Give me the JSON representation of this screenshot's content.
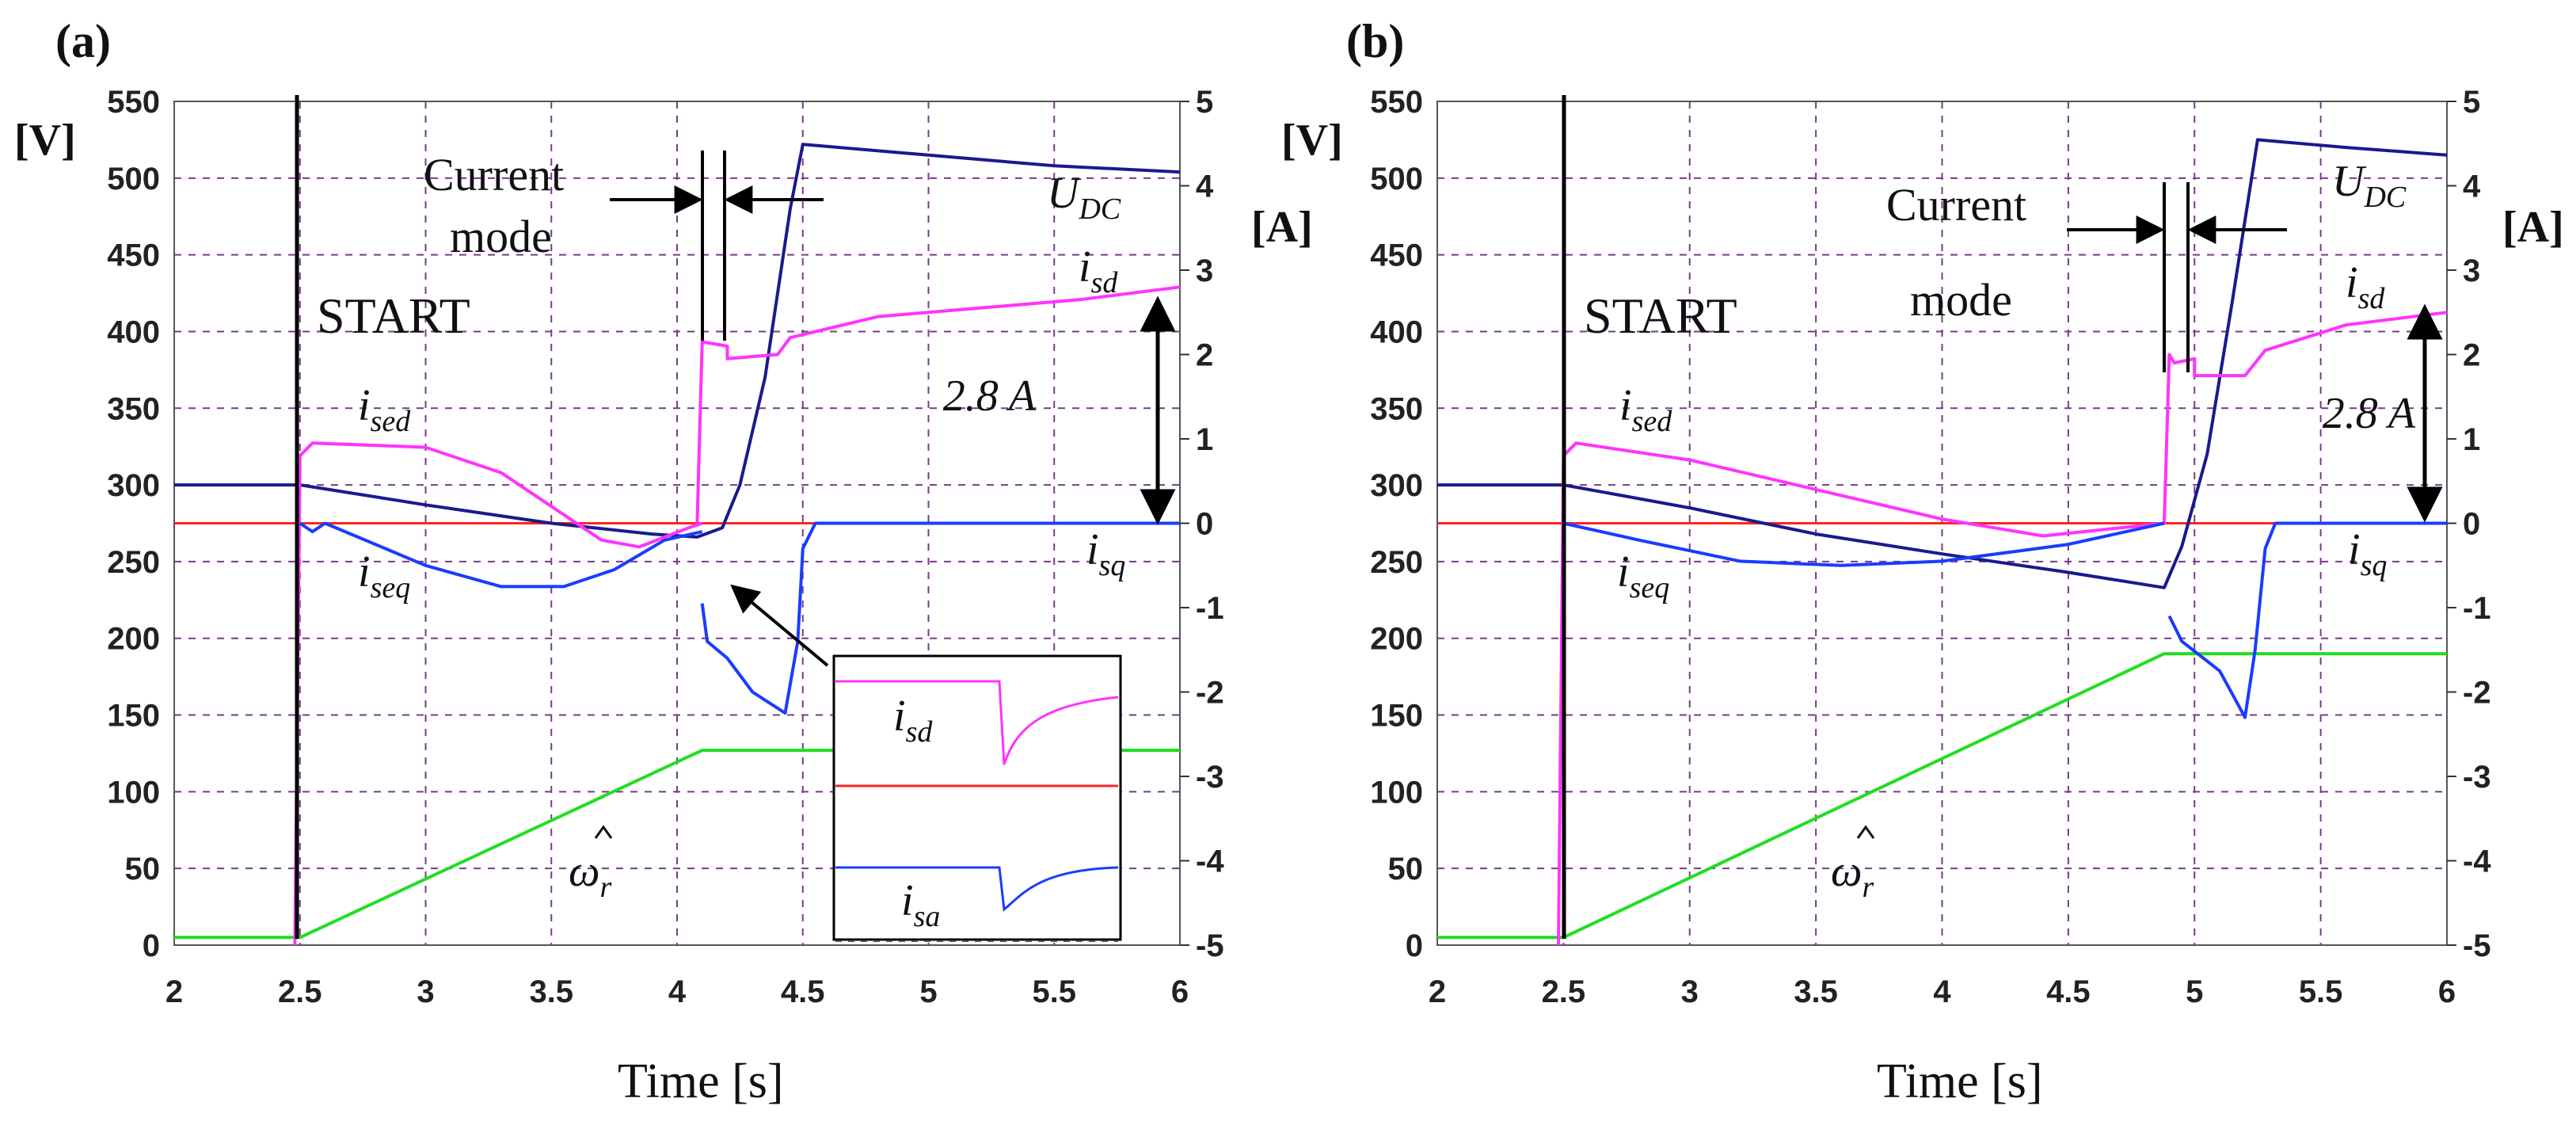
{
  "figure": {
    "panels": [
      {
        "id": "a",
        "label": "(a)",
        "left_axis_label": "[V]",
        "right_axis_label": "[A]",
        "xlabel": "Time [s]",
        "start_label": "START",
        "current_mode_label": [
          "Current",
          "mode"
        ],
        "delta_label": "2.8 A",
        "inset": {
          "isd": {
            "main": "i",
            "sub": "sd"
          },
          "isa": {
            "main": "i",
            "sub": "sa"
          }
        }
      },
      {
        "id": "b",
        "label": "(b)",
        "left_axis_label": "[V]",
        "right_axis_label": "[A]",
        "xlabel": "Time [s]",
        "start_label": "START",
        "current_mode_label": [
          "Current",
          "mode"
        ],
        "delta_label": "2.8 A"
      }
    ]
  },
  "chart_data": [
    {
      "type": "line",
      "panel": "a",
      "xlim": [
        2,
        6
      ],
      "ylim_left": [
        0,
        550
      ],
      "ylim_right": [
        -5,
        5
      ],
      "xticks": [
        "2",
        "2.5",
        "3",
        "3.5",
        "4",
        "4.5",
        "5",
        "5.5",
        "6"
      ],
      "yticks_left": [
        "0",
        "50",
        "100",
        "150",
        "200",
        "250",
        "300",
        "350",
        "400",
        "450",
        "500",
        "550"
      ],
      "yticks_right": [
        "-5",
        "-4",
        "-3",
        "-2",
        "-1",
        "0",
        "1",
        "2",
        "3",
        "4",
        "5"
      ],
      "xlabel": "Time [s]",
      "grid": true,
      "series": [
        {
          "name": "U_DC",
          "label": {
            "main": "U",
            "sub": "DC"
          },
          "axis": "left",
          "color": "#1a1a8c",
          "points": [
            [
              2,
              300
            ],
            [
              2.5,
              300
            ],
            [
              3.0,
              287
            ],
            [
              3.5,
              275
            ],
            [
              3.9,
              268
            ],
            [
              4.08,
              266
            ],
            [
              4.18,
              272
            ],
            [
              4.25,
              300
            ],
            [
              4.35,
              370
            ],
            [
              4.45,
              480
            ],
            [
              4.5,
              522
            ],
            [
              5.0,
              515
            ],
            [
              5.5,
              508
            ],
            [
              6,
              504
            ]
          ]
        },
        {
          "name": "i_sd",
          "label": {
            "main": "i",
            "sub": "sd"
          },
          "axis": "right",
          "color": "#ff33ff",
          "points": [
            [
              4.08,
              0
            ],
            [
              4.1,
              2.15
            ],
            [
              4.2,
              2.1
            ],
            [
              4.2,
              1.95
            ],
            [
              4.4,
              2.0
            ],
            [
              4.45,
              2.2
            ],
            [
              4.8,
              2.45
            ],
            [
              5.2,
              2.55
            ],
            [
              5.6,
              2.65
            ],
            [
              6,
              2.8
            ]
          ]
        },
        {
          "name": "i_sed",
          "label": {
            "main": "i",
            "sub": "sed"
          },
          "axis": "right",
          "color": "#ff33ff",
          "points": [
            [
              2.48,
              -5
            ],
            [
              2.5,
              0.8
            ],
            [
              2.55,
              0.95
            ],
            [
              3.0,
              0.9
            ],
            [
              3.3,
              0.6
            ],
            [
              3.5,
              0.2
            ],
            [
              3.7,
              -0.2
            ],
            [
              3.85,
              -0.28
            ],
            [
              4.05,
              -0.05
            ],
            [
              4.1,
              0
            ]
          ]
        },
        {
          "name": "i_seq",
          "label": {
            "main": "i",
            "sub": "seq"
          },
          "axis": "right",
          "color": "#1a3cff",
          "points": [
            [
              2.5,
              0
            ],
            [
              2.55,
              -0.1
            ],
            [
              2.6,
              0
            ],
            [
              3.0,
              -0.5
            ],
            [
              3.3,
              -0.75
            ],
            [
              3.55,
              -0.75
            ],
            [
              3.75,
              -0.55
            ],
            [
              3.95,
              -0.2
            ],
            [
              4.1,
              -0.1
            ]
          ]
        },
        {
          "name": "i_sq",
          "label": {
            "main": "i",
            "sub": "sq"
          },
          "axis": "right",
          "color": "#1a3cff",
          "points": [
            [
              4.1,
              -0.95
            ],
            [
              4.12,
              -1.4
            ],
            [
              4.2,
              -1.6
            ],
            [
              4.3,
              -2.0
            ],
            [
              4.43,
              -2.25
            ],
            [
              4.48,
              -1.4
            ],
            [
              4.5,
              -0.3
            ],
            [
              4.55,
              0
            ],
            [
              6,
              0
            ]
          ]
        },
        {
          "name": "omega_r",
          "label": {
            "main": "ω",
            "sub": "r"
          },
          "axis": "left",
          "color": "#22dd22",
          "points": [
            [
              2,
              5
            ],
            [
              2.5,
              5
            ],
            [
              4.1,
              127
            ],
            [
              6,
              127
            ]
          ]
        },
        {
          "name": "reference",
          "axis": "right",
          "color": "#ff2222",
          "points": [
            [
              2,
              0
            ],
            [
              6,
              0
            ]
          ]
        }
      ],
      "annotations": [
        "START",
        "Current mode",
        "2.8 A"
      ]
    },
    {
      "type": "line",
      "panel": "b",
      "xlim": [
        2,
        6
      ],
      "ylim_left": [
        0,
        550
      ],
      "ylim_right": [
        -5,
        5
      ],
      "xticks": [
        "2",
        "2.5",
        "3",
        "3.5",
        "4",
        "4.5",
        "5",
        "5.5",
        "6"
      ],
      "yticks_left": [
        "0",
        "50",
        "100",
        "150",
        "200",
        "250",
        "300",
        "350",
        "400",
        "450",
        "500",
        "550"
      ],
      "yticks_right": [
        "-5",
        "-4",
        "-3",
        "-2",
        "-1",
        "0",
        "1",
        "2",
        "3",
        "4",
        "5"
      ],
      "xlabel": "Time [s]",
      "grid": true,
      "series": [
        {
          "name": "U_DC",
          "label": {
            "main": "U",
            "sub": "DC"
          },
          "axis": "left",
          "color": "#1a1a8c",
          "points": [
            [
              2,
              300
            ],
            [
              2.5,
              300
            ],
            [
              3.0,
              285
            ],
            [
              3.5,
              268
            ],
            [
              4.0,
              255
            ],
            [
              4.5,
              243
            ],
            [
              4.88,
              233
            ],
            [
              4.95,
              260
            ],
            [
              5.05,
              320
            ],
            [
              5.15,
              420
            ],
            [
              5.25,
              525
            ],
            [
              5.6,
              520
            ],
            [
              6,
              515
            ]
          ]
        },
        {
          "name": "i_sd",
          "label": {
            "main": "i",
            "sub": "sd"
          },
          "axis": "right",
          "color": "#ff33ff",
          "points": [
            [
              4.88,
              0
            ],
            [
              4.9,
              2.0
            ],
            [
              4.92,
              1.9
            ],
            [
              5.0,
              1.95
            ],
            [
              5.0,
              1.75
            ],
            [
              5.2,
              1.75
            ],
            [
              5.28,
              2.05
            ],
            [
              5.6,
              2.35
            ],
            [
              6,
              2.5
            ]
          ]
        },
        {
          "name": "i_sed",
          "label": {
            "main": "i",
            "sub": "sed"
          },
          "axis": "right",
          "color": "#ff33ff",
          "points": [
            [
              2.48,
              -5
            ],
            [
              2.5,
              0.8
            ],
            [
              2.55,
              0.95
            ],
            [
              3.0,
              0.75
            ],
            [
              3.5,
              0.4
            ],
            [
              4.0,
              0.05
            ],
            [
              4.4,
              -0.15
            ],
            [
              4.88,
              0
            ]
          ]
        },
        {
          "name": "i_seq",
          "label": {
            "main": "i",
            "sub": "seq"
          },
          "axis": "right",
          "color": "#1a3cff",
          "points": [
            [
              2.5,
              0
            ],
            [
              2.8,
              -0.2
            ],
            [
              3.2,
              -0.45
            ],
            [
              3.6,
              -0.5
            ],
            [
              4.0,
              -0.45
            ],
            [
              4.5,
              -0.25
            ],
            [
              4.88,
              0
            ]
          ]
        },
        {
          "name": "i_sq",
          "label": {
            "main": "i",
            "sub": "sq"
          },
          "axis": "right",
          "color": "#1a3cff",
          "points": [
            [
              4.9,
              -1.1
            ],
            [
              4.95,
              -1.4
            ],
            [
              5.1,
              -1.75
            ],
            [
              5.2,
              -2.3
            ],
            [
              5.24,
              -1.5
            ],
            [
              5.28,
              -0.3
            ],
            [
              5.32,
              0
            ],
            [
              6,
              0
            ]
          ]
        },
        {
          "name": "omega_r",
          "label": {
            "main": "ω",
            "sub": "r"
          },
          "axis": "left",
          "color": "#22dd22",
          "points": [
            [
              2,
              5
            ],
            [
              2.5,
              5
            ],
            [
              4.88,
              190
            ],
            [
              6,
              190
            ]
          ]
        },
        {
          "name": "reference",
          "axis": "right",
          "color": "#ff2222",
          "points": [
            [
              2,
              0
            ],
            [
              6,
              0
            ]
          ]
        }
      ],
      "annotations": [
        "START",
        "Current mode",
        "2.8 A"
      ]
    }
  ]
}
